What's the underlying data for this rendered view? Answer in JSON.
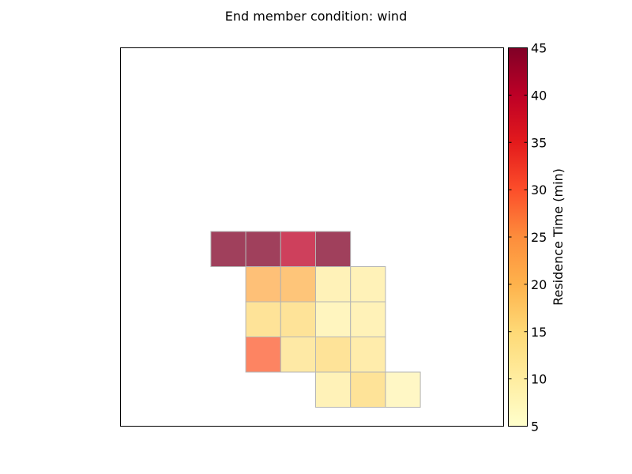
{
  "chart_data": {
    "type": "heatmap",
    "title": "End member condition: wind",
    "colorbar": {
      "label": "Residence Time (min)",
      "range": [
        5,
        45
      ],
      "ticks": [
        "5",
        "10",
        "15",
        "20",
        "25",
        "30",
        "35",
        "40",
        "45"
      ],
      "colormap": "YlOrRd"
    },
    "grid": {
      "columns": 11,
      "rows": 11
    },
    "cells": [
      {
        "col": 2,
        "row": 4,
        "value": 45
      },
      {
        "col": 3,
        "row": 4,
        "value": 45
      },
      {
        "col": 4,
        "row": 4,
        "value": 40
      },
      {
        "col": 5,
        "row": 4,
        "value": 45
      },
      {
        "col": 3,
        "row": 5,
        "value": 21
      },
      {
        "col": 4,
        "row": 5,
        "value": 20
      },
      {
        "col": 5,
        "row": 5,
        "value": 10
      },
      {
        "col": 6,
        "row": 5,
        "value": 10
      },
      {
        "col": 3,
        "row": 6,
        "value": 15
      },
      {
        "col": 4,
        "row": 6,
        "value": 15
      },
      {
        "col": 5,
        "row": 6,
        "value": 9
      },
      {
        "col": 6,
        "row": 6,
        "value": 10
      },
      {
        "col": 3,
        "row": 7,
        "value": 29
      },
      {
        "col": 4,
        "row": 7,
        "value": 13
      },
      {
        "col": 5,
        "row": 7,
        "value": 15
      },
      {
        "col": 6,
        "row": 7,
        "value": 12
      },
      {
        "col": 5,
        "row": 8,
        "value": 10
      },
      {
        "col": 6,
        "row": 8,
        "value": 15
      },
      {
        "col": 7,
        "row": 8,
        "value": 8
      }
    ]
  }
}
